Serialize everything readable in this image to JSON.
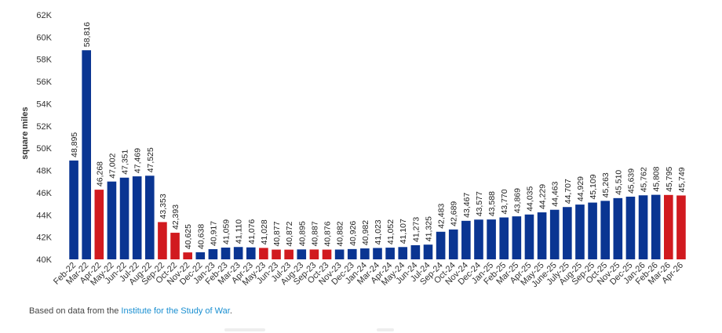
{
  "chart_data": {
    "type": "bar",
    "ylabel": "square miles",
    "ylim": [
      40000,
      62000
    ],
    "y_ticks": [
      {
        "value": 40000,
        "label": "40K"
      },
      {
        "value": 42000,
        "label": "42K"
      },
      {
        "value": 44000,
        "label": "44K"
      },
      {
        "value": 46000,
        "label": "46K"
      },
      {
        "value": 48000,
        "label": "48K"
      },
      {
        "value": 50000,
        "label": "50K"
      },
      {
        "value": 52000,
        "label": "52K"
      },
      {
        "value": 54000,
        "label": "54K"
      },
      {
        "value": 56000,
        "label": "56K"
      },
      {
        "value": 58000,
        "label": "58K"
      },
      {
        "value": 60000,
        "label": "60K"
      },
      {
        "value": 62000,
        "label": "62K"
      }
    ],
    "grid": false,
    "colors": {
      "increase": "#0a3592",
      "decrease": "#d11a1f"
    },
    "bars": [
      {
        "category": "Feb-22",
        "value": 48895,
        "label": "48,895",
        "color": "#0a3592"
      },
      {
        "category": "Mar-22",
        "value": 58816,
        "label": "58,816",
        "color": "#0a3592"
      },
      {
        "category": "Apr-22",
        "value": 46268,
        "label": "46,268",
        "color": "#d11a1f"
      },
      {
        "category": "May-22",
        "value": 47002,
        "label": "47,002",
        "color": "#0a3592"
      },
      {
        "category": "Jun-22",
        "value": 47351,
        "label": "47,351",
        "color": "#0a3592"
      },
      {
        "category": "Jul-22",
        "value": 47469,
        "label": "47,469",
        "color": "#0a3592"
      },
      {
        "category": "Aug-22",
        "value": 47525,
        "label": "47,525",
        "color": "#0a3592"
      },
      {
        "category": "Sep-22",
        "value": 43353,
        "label": "43,353",
        "color": "#d11a1f"
      },
      {
        "category": "Oct-22",
        "value": 42393,
        "label": "42,393",
        "color": "#d11a1f"
      },
      {
        "category": "Nov-22",
        "value": 40625,
        "label": "40,625",
        "color": "#d11a1f"
      },
      {
        "category": "Dec-22",
        "value": 40638,
        "label": "40,638",
        "color": "#0a3592"
      },
      {
        "category": "Jan-23",
        "value": 40917,
        "label": "40,917",
        "color": "#0a3592"
      },
      {
        "category": "Feb-23",
        "value": 41059,
        "label": "41,059",
        "color": "#0a3592"
      },
      {
        "category": "Mar-23",
        "value": 41110,
        "label": "41,110",
        "color": "#0a3592"
      },
      {
        "category": "Apr-23",
        "value": 41076,
        "label": "41,076",
        "color": "#0a3592"
      },
      {
        "category": "May-23",
        "value": 41028,
        "label": "41,028",
        "color": "#d11a1f"
      },
      {
        "category": "Jun-23",
        "value": 40877,
        "label": "40,877",
        "color": "#d11a1f"
      },
      {
        "category": "Jul-23",
        "value": 40872,
        "label": "40,872",
        "color": "#d11a1f"
      },
      {
        "category": "Aug-23",
        "value": 40895,
        "label": "40,895",
        "color": "#0a3592"
      },
      {
        "category": "Sep-23",
        "value": 40887,
        "label": "40,887",
        "color": "#d11a1f"
      },
      {
        "category": "Oct-23",
        "value": 40876,
        "label": "40,876",
        "color": "#d11a1f"
      },
      {
        "category": "Nov-23",
        "value": 40882,
        "label": "40,882",
        "color": "#0a3592"
      },
      {
        "category": "Dec-23",
        "value": 40926,
        "label": "40,926",
        "color": "#0a3592"
      },
      {
        "category": "Jan-24",
        "value": 40982,
        "label": "40,982",
        "color": "#0a3592"
      },
      {
        "category": "Mar-24",
        "value": 41023,
        "label": "41,023",
        "color": "#0a3592"
      },
      {
        "category": "Apr-24",
        "value": 41052,
        "label": "41,052",
        "color": "#0a3592"
      },
      {
        "category": "May-24",
        "value": 41107,
        "label": "41,107",
        "color": "#0a3592"
      },
      {
        "category": "Jun-24",
        "value": 41273,
        "label": "41,273",
        "color": "#0a3592"
      },
      {
        "category": "Jul-24",
        "value": 41325,
        "label": "41,325",
        "color": "#0a3592"
      },
      {
        "category": "Sep-24",
        "value": 42483,
        "label": "42,483",
        "color": "#0a3592"
      },
      {
        "category": "Oct-24",
        "value": 42689,
        "label": "42,689",
        "color": "#0a3592"
      },
      {
        "category": "Nov-24",
        "value": 43467,
        "label": "43,467",
        "color": "#0a3592"
      },
      {
        "category": "Dec-24",
        "value": 43577,
        "label": "43,577",
        "color": "#0a3592"
      },
      {
        "category": "Jan-25",
        "value": 43588,
        "label": "43,588",
        "color": "#0a3592"
      },
      {
        "category": "Feb-25",
        "value": 43770,
        "label": "43,770",
        "color": "#0a3592"
      },
      {
        "category": "Mar-25",
        "value": 43869,
        "label": "43,869",
        "color": "#0a3592"
      },
      {
        "category": "Apr-25",
        "value": 44035,
        "label": "44,035",
        "color": "#0a3592"
      },
      {
        "category": "May-25",
        "value": 44229,
        "label": "44,229",
        "color": "#0a3592"
      },
      {
        "category": "June-25",
        "value": 44463,
        "label": "44,463",
        "color": "#0a3592"
      },
      {
        "category": "July-25",
        "value": 44707,
        "label": "44,707",
        "color": "#0a3592"
      },
      {
        "category": "Aug-25",
        "value": 44929,
        "label": "44,929",
        "color": "#0a3592"
      },
      {
        "category": "Sep-25",
        "value": 45109,
        "label": "45,109",
        "color": "#0a3592"
      },
      {
        "category": "Oct-25",
        "value": 45263,
        "label": "45,263",
        "color": "#0a3592"
      },
      {
        "category": "Nov-25",
        "value": 45510,
        "label": "45,510",
        "color": "#0a3592"
      },
      {
        "category": "Dec-25",
        "value": 45639,
        "label": "45,639",
        "color": "#0a3592"
      },
      {
        "category": "Jan-26",
        "value": 45762,
        "label": "45,762",
        "color": "#0a3592"
      },
      {
        "category": "Feb-26",
        "value": 45808,
        "label": "45,808",
        "color": "#0a3592"
      },
      {
        "category": "Mar-26",
        "value": 45795,
        "label": "45,795",
        "color": "#d11a1f"
      },
      {
        "category": "Apr-26",
        "value": 45749,
        "label": "45,749",
        "color": "#d11a1f"
      }
    ]
  },
  "footer": {
    "source_prefix": "Based on data from the ",
    "source_link": "Institute for the Study of War",
    "source_suffix": "."
  }
}
